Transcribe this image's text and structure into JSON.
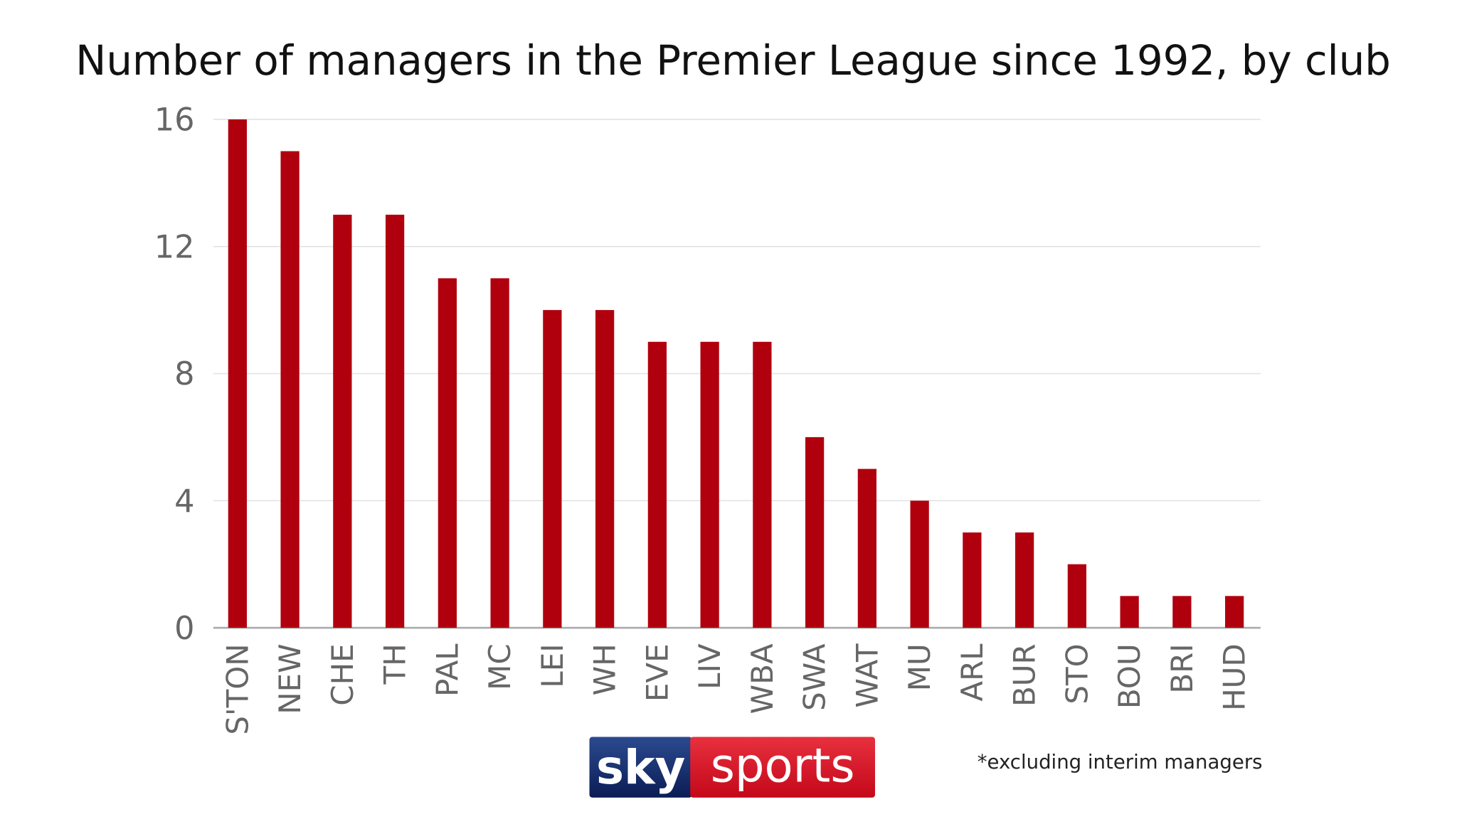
{
  "chart_data": {
    "type": "bar",
    "title": "Number of managers in the Premier League since 1992, by club",
    "xlabel": "",
    "ylabel": "",
    "ylim": [
      0,
      16
    ],
    "yticks": [
      0,
      4,
      8,
      12,
      16
    ],
    "grid": true,
    "categories": [
      "S'TON",
      "NEW",
      "CHE",
      "TH",
      "PAL",
      "MC",
      "LEI",
      "WH",
      "EVE",
      "LIV",
      "WBA",
      "SWA",
      "WAT",
      "MU",
      "ARL",
      "BUR",
      "STO",
      "BOU",
      "BRI",
      "HUD"
    ],
    "values": [
      16,
      15,
      13,
      13,
      11,
      11,
      10,
      10,
      9,
      9,
      9,
      6,
      5,
      4,
      3,
      3,
      2,
      1,
      1,
      1
    ],
    "footnote": "*excluding interim managers"
  },
  "colors": {
    "bar": "#b0000e",
    "grid": "#e2e2e2",
    "axis": "#aaaaaa"
  },
  "logo": {
    "part1": "sky",
    "part2": "sports"
  }
}
